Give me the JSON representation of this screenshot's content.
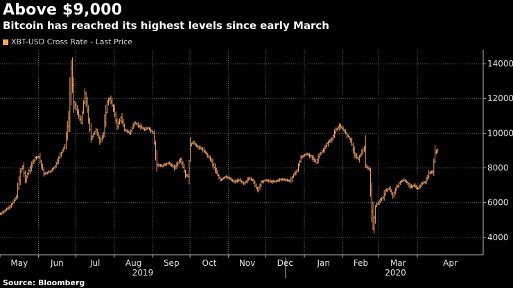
{
  "title": "Above $9,000",
  "subtitle": "Bitcoin has reached its highest levels since early March",
  "legend": {
    "label": "XBT-USD Cross Rate - Last Price",
    "color": "#f5a462"
  },
  "source": "Source: Bloomberg",
  "chart_data": {
    "type": "bar",
    "title": "Above $9,000",
    "subtitle": "Bitcoin has reached its highest levels since early March",
    "series_name": "XBT-USD Cross Rate - Last Price",
    "y_axis_side": "right",
    "ylim": [
      3000,
      14800
    ],
    "yticks": [
      4000,
      6000,
      8000,
      10000,
      12000,
      14000
    ],
    "ytick_labels": [
      "4000",
      "6000",
      "8000",
      "10000",
      "12000",
      "14000"
    ],
    "grid": true,
    "month_labels": [
      "May",
      "Jun",
      "Jul",
      "Aug",
      "Sep",
      "Oct",
      "Nov",
      "Dec",
      "Jan",
      "Feb",
      "Mar",
      "Apr"
    ],
    "year_labels": [
      "2019",
      "2020"
    ],
    "x_range_days": [
      0,
      389
    ],
    "month_start_days": [
      0,
      31,
      61,
      92,
      123,
      153,
      184,
      214,
      245,
      276,
      305,
      336
    ],
    "key_points": [
      [
        0,
        5350
      ],
      [
        8,
        5800
      ],
      [
        13,
        6350
      ],
      [
        16,
        7800
      ],
      [
        18,
        8100
      ],
      [
        20,
        7300
      ],
      [
        24,
        8000
      ],
      [
        28,
        8600
      ],
      [
        31,
        8650
      ],
      [
        35,
        7650
      ],
      [
        40,
        7800
      ],
      [
        44,
        8100
      ],
      [
        48,
        8750
      ],
      [
        52,
        9300
      ],
      [
        55,
        10900
      ],
      [
        57,
        13700
      ],
      [
        59,
        11800
      ],
      [
        62,
        11200
      ],
      [
        65,
        10600
      ],
      [
        68,
        12300
      ],
      [
        70,
        11300
      ],
      [
        73,
        9700
      ],
      [
        77,
        10200
      ],
      [
        80,
        9500
      ],
      [
        83,
        10000
      ],
      [
        86,
        11800
      ],
      [
        88,
        12000
      ],
      [
        91,
        11400
      ],
      [
        94,
        10400
      ],
      [
        97,
        10900
      ],
      [
        100,
        10200
      ],
      [
        104,
        10000
      ],
      [
        108,
        10600
      ],
      [
        112,
        10400
      ],
      [
        116,
        10200
      ],
      [
        119,
        10300
      ],
      [
        123,
        10000
      ],
      [
        126,
        8200
      ],
      [
        130,
        8100
      ],
      [
        135,
        8300
      ],
      [
        140,
        8000
      ],
      [
        145,
        8500
      ],
      [
        149,
        7600
      ],
      [
        151,
        7500
      ],
      [
        153,
        9300
      ],
      [
        155,
        9500
      ],
      [
        158,
        9250
      ],
      [
        162,
        9100
      ],
      [
        166,
        8800
      ],
      [
        170,
        8400
      ],
      [
        174,
        7700
      ],
      [
        177,
        7300
      ],
      [
        181,
        7500
      ],
      [
        184,
        7400
      ],
      [
        188,
        7200
      ],
      [
        192,
        7300
      ],
      [
        196,
        7100
      ],
      [
        200,
        7400
      ],
      [
        203,
        7300
      ],
      [
        207,
        6700
      ],
      [
        210,
        7200
      ],
      [
        214,
        7300
      ],
      [
        218,
        7200
      ],
      [
        222,
        7250
      ],
      [
        226,
        7350
      ],
      [
        230,
        7300
      ],
      [
        233,
        7250
      ],
      [
        236,
        7600
      ],
      [
        239,
        7900
      ],
      [
        242,
        8600
      ],
      [
        246,
        8800
      ],
      [
        250,
        8700
      ],
      [
        254,
        8300
      ],
      [
        257,
        8800
      ],
      [
        260,
        9000
      ],
      [
        263,
        9400
      ],
      [
        267,
        9700
      ],
      [
        270,
        10200
      ],
      [
        273,
        10400
      ],
      [
        276,
        10200
      ],
      [
        279,
        9900
      ],
      [
        282,
        9600
      ],
      [
        285,
        8800
      ],
      [
        288,
        8500
      ],
      [
        290,
        8800
      ],
      [
        293,
        9150
      ],
      [
        294,
        8100
      ],
      [
        297,
        7900
      ],
      [
        299,
        5500
      ],
      [
        300,
        4500
      ],
      [
        302,
        5800
      ],
      [
        305,
        6100
      ],
      [
        308,
        6300
      ],
      [
        310,
        6700
      ],
      [
        313,
        6800
      ],
      [
        316,
        6400
      ],
      [
        319,
        6900
      ],
      [
        322,
        7200
      ],
      [
        325,
        7300
      ],
      [
        328,
        7100
      ],
      [
        330,
        6900
      ],
      [
        333,
        7000
      ],
      [
        336,
        6800
      ],
      [
        339,
        7100
      ],
      [
        342,
        7200
      ],
      [
        345,
        7700
      ],
      [
        348,
        7800
      ],
      [
        350,
        8900
      ],
      [
        352,
        9050
      ]
    ]
  }
}
